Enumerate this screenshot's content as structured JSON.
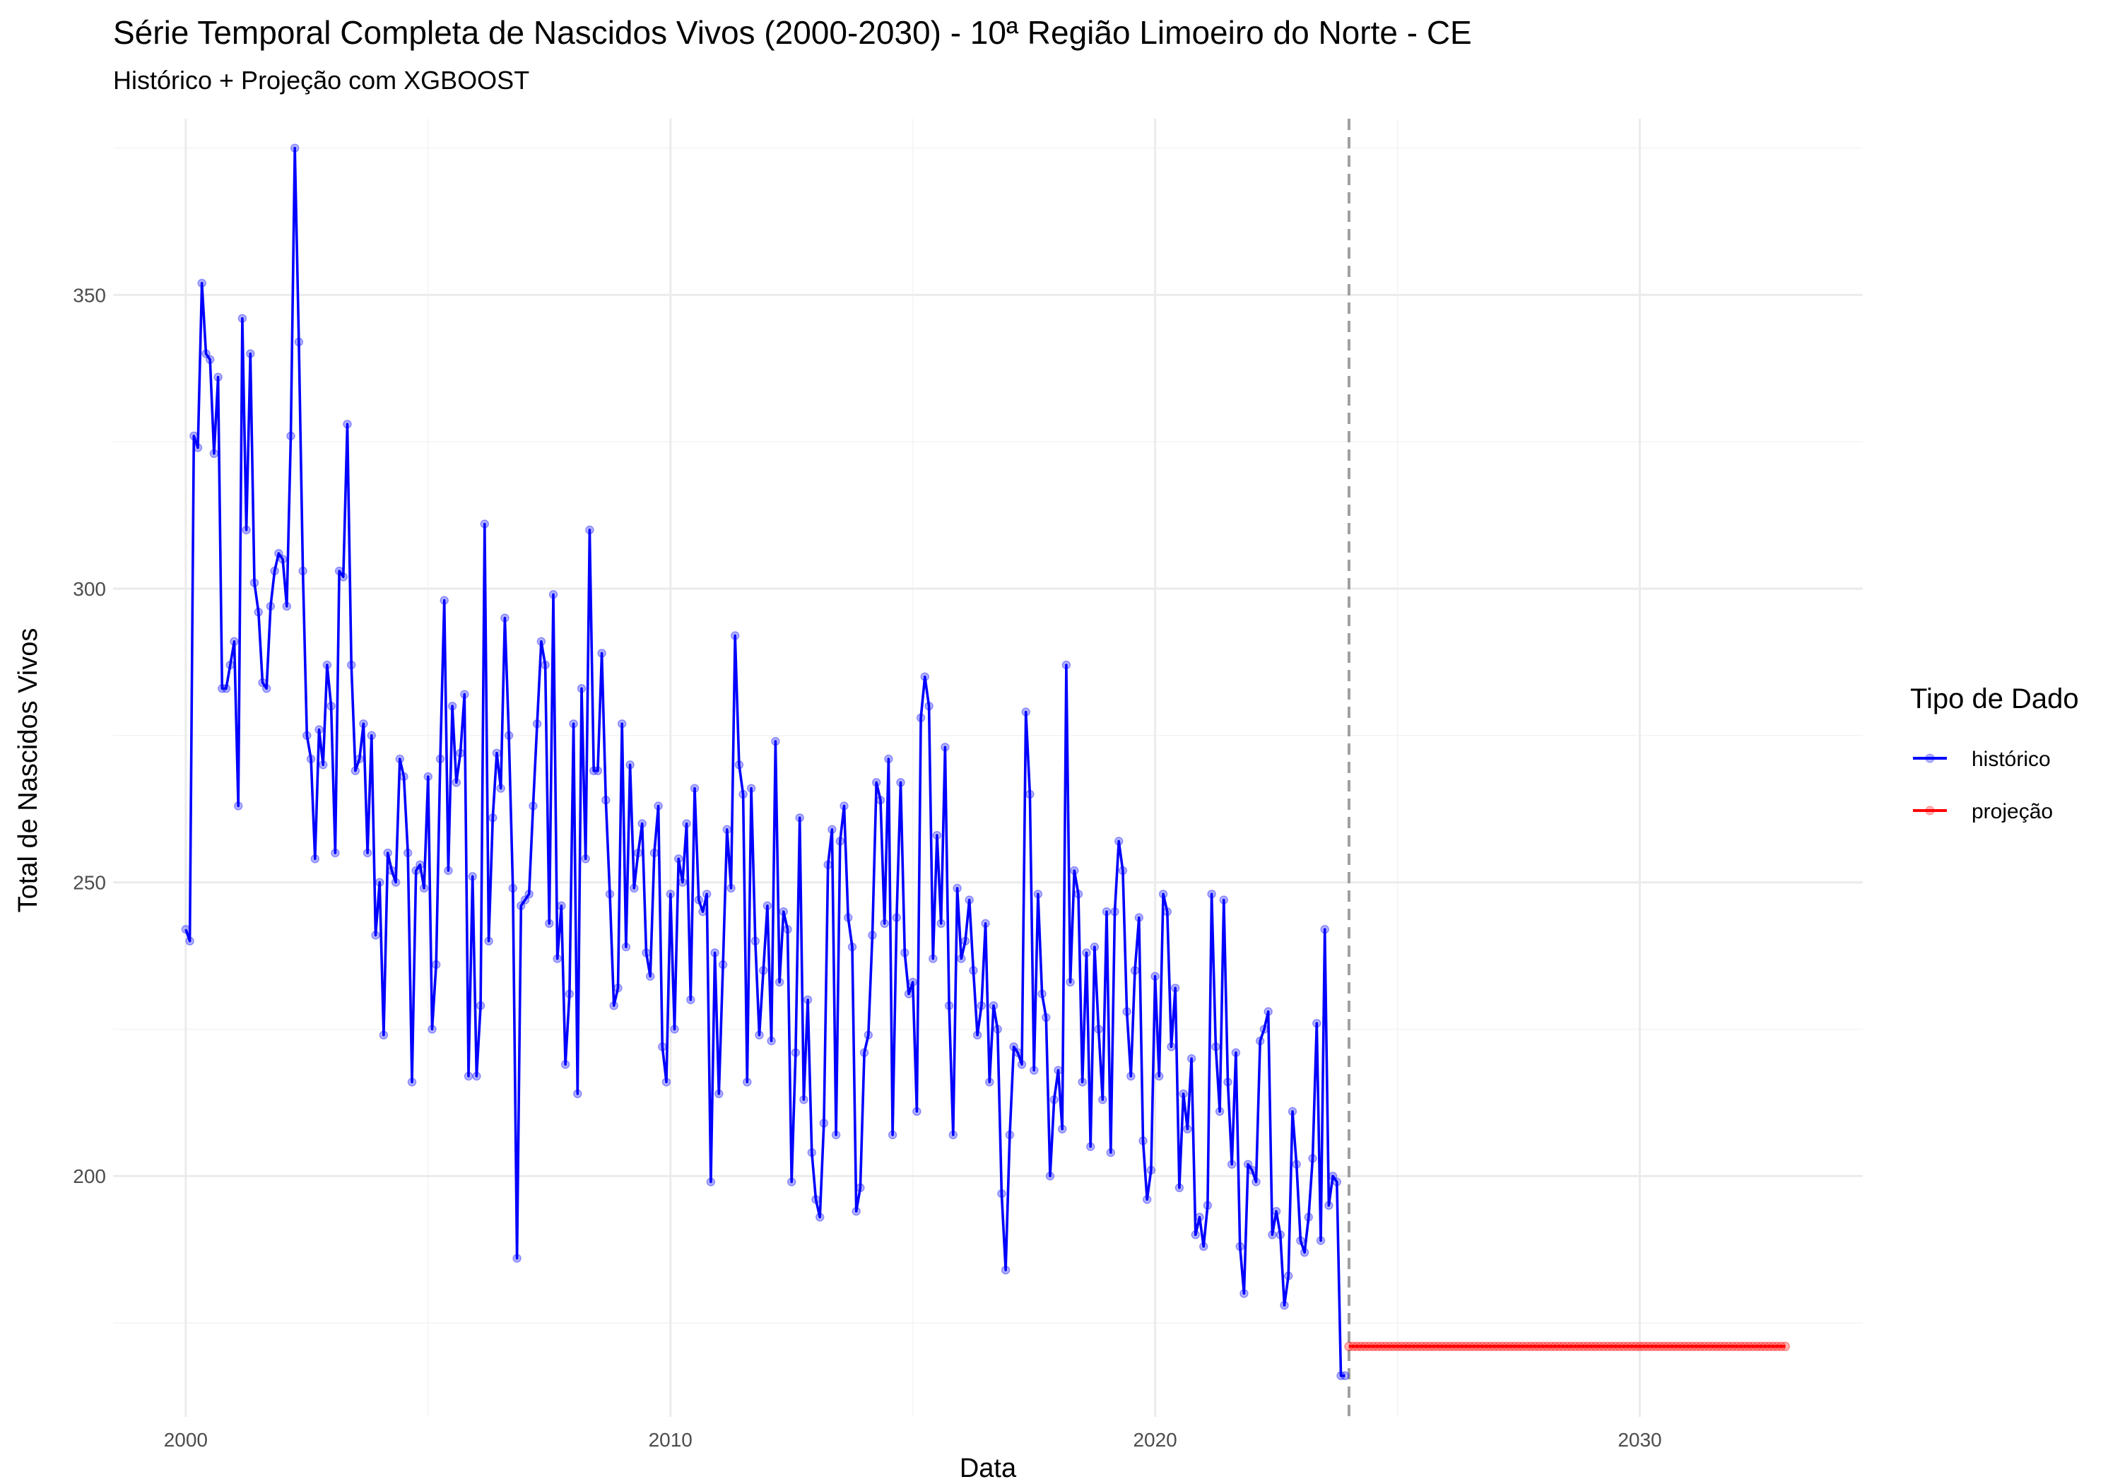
{
  "chart_data": {
    "type": "line",
    "title": "Série Temporal Completa de Nascidos Vivos (2000-2030) -  10ª Região Limoeiro do Norte - CE",
    "subtitle": "Histórico + Projeção com XGBOOST",
    "xlabel": "Data",
    "ylabel": "Total de Nascidos Vivos",
    "x_ticks": [
      "2000",
      "2010",
      "2020",
      "2030"
    ],
    "y_ticks": [
      200,
      250,
      300,
      350
    ],
    "xlim": [
      1998.5,
      2034.6
    ],
    "ylim": [
      159,
      380
    ],
    "grid": true,
    "legend": {
      "title": "Tipo de Dado",
      "position": "right"
    },
    "vline": {
      "x": 2024.0,
      "style": "dashed",
      "color": "#a0a0a0"
    },
    "series": [
      {
        "name": "histórico",
        "color": "#0000ff",
        "start_year": 2000,
        "interval": "monthly",
        "values": [
          242,
          240,
          326,
          324,
          352,
          340,
          339,
          323,
          336,
          283,
          283,
          287,
          291,
          263,
          346,
          310,
          340,
          301,
          296,
          284,
          283,
          297,
          303,
          306,
          305,
          297,
          326,
          375,
          342,
          303,
          275,
          271,
          254,
          276,
          270,
          287,
          280,
          255,
          303,
          302,
          328,
          287,
          269,
          271,
          277,
          255,
          275,
          241,
          250,
          224,
          255,
          252,
          250,
          271,
          268,
          255,
          216,
          252,
          253,
          249,
          268,
          225,
          236,
          271,
          298,
          252,
          280,
          267,
          272,
          282,
          217,
          251,
          217,
          229,
          311,
          240,
          261,
          272,
          266,
          295,
          275,
          249,
          186,
          246,
          247,
          248,
          263,
          277,
          291,
          287,
          243,
          299,
          237,
          246,
          219,
          231,
          277,
          214,
          283,
          254,
          310,
          269,
          269,
          289,
          264,
          248,
          229,
          232,
          277,
          239,
          270,
          249,
          255,
          260,
          238,
          234,
          255,
          263,
          222,
          216,
          248,
          225,
          254,
          250,
          260,
          230,
          266,
          247,
          245,
          248,
          199,
          238,
          214,
          236,
          259,
          249,
          292,
          270,
          265,
          216,
          266,
          240,
          224,
          235,
          246,
          223,
          274,
          233,
          245,
          242,
          199,
          221,
          261,
          213,
          230,
          204,
          196,
          193,
          209,
          253,
          259,
          207,
          257,
          263,
          244,
          239,
          194,
          198,
          221,
          224,
          241,
          267,
          264,
          243,
          271,
          207,
          244,
          267,
          238,
          231,
          233,
          211,
          278,
          285,
          280,
          237,
          258,
          243,
          273,
          229,
          207,
          249,
          237,
          240,
          247,
          235,
          224,
          229,
          243,
          216,
          229,
          225,
          197,
          184,
          207,
          222,
          221,
          219,
          279,
          265,
          218,
          248,
          231,
          227,
          200,
          213,
          218,
          208,
          287,
          233,
          252,
          248,
          216,
          238,
          205,
          239,
          225,
          213,
          245,
          204,
          245,
          257,
          252,
          228,
          217,
          235,
          244,
          206,
          196,
          201,
          234,
          217,
          248,
          245,
          222,
          232,
          198,
          214,
          208,
          220,
          190,
          193,
          188,
          195,
          248,
          222,
          211,
          247,
          216,
          202,
          221,
          188,
          180,
          202,
          201,
          199,
          223,
          225,
          228,
          190,
          194,
          190,
          178,
          183,
          211,
          202,
          189,
          187,
          193,
          203,
          226,
          189,
          242,
          195,
          200,
          199,
          166,
          166
        ]
      },
      {
        "name": "projeção",
        "color": "#ff0000",
        "start_year": 2024,
        "interval": "monthly",
        "values": [
          171,
          171,
          171,
          171,
          171,
          171,
          171,
          171,
          171,
          171,
          171,
          171,
          171,
          171,
          171,
          171,
          171,
          171,
          171,
          171,
          171,
          171,
          171,
          171,
          171,
          171,
          171,
          171,
          171,
          171,
          171,
          171,
          171,
          171,
          171,
          171,
          171,
          171,
          171,
          171,
          171,
          171,
          171,
          171,
          171,
          171,
          171,
          171,
          171,
          171,
          171,
          171,
          171,
          171,
          171,
          171,
          171,
          171,
          171,
          171,
          171,
          171,
          171,
          171,
          171,
          171,
          171,
          171,
          171,
          171,
          171,
          171,
          171,
          171,
          171,
          171,
          171,
          171,
          171,
          171,
          171,
          171,
          171,
          171,
          171,
          171,
          171,
          171,
          171,
          171,
          171,
          171,
          171,
          171,
          171,
          171,
          171,
          171,
          171,
          171,
          171,
          171,
          171,
          171,
          171,
          171,
          171,
          171,
          171
        ]
      }
    ]
  }
}
